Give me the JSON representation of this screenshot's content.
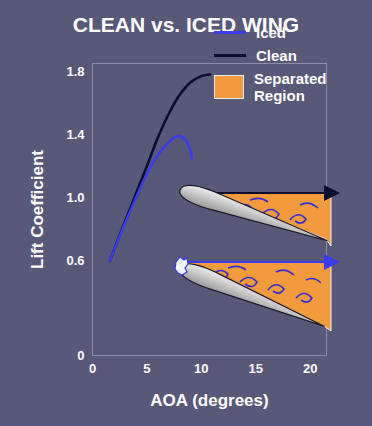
{
  "chart_data": {
    "type": "line",
    "title": "CLEAN vs. ICED WING",
    "x_label": "AOA (degrees)",
    "y_label": "Lift Coefficient",
    "xlim": [
      0,
      21.5
    ],
    "ylim": [
      0,
      1.85
    ],
    "xticks": [
      0,
      5,
      10,
      15,
      20
    ],
    "yticks": [
      0,
      0.6,
      {
        "value": 1,
        "label": "1.0"
      },
      1.4,
      1.8
    ],
    "legend": "top-right",
    "series": [
      {
        "name": "Iced",
        "color": "#3a3aee",
        "x": [
          1.6,
          3,
          5,
          6,
          7,
          7.5,
          8,
          8.5,
          9,
          9.1
        ],
        "values": [
          0.6,
          0.84,
          1.15,
          1.27,
          1.35,
          1.38,
          1.39,
          1.37,
          1.3,
          1.25
        ]
      },
      {
        "name": "Clean",
        "color": "#0c0c2e",
        "x": [
          1.6,
          3,
          5,
          6,
          7,
          8,
          9,
          10,
          10.8
        ],
        "values": [
          0.6,
          0.85,
          1.2,
          1.38,
          1.53,
          1.65,
          1.73,
          1.77,
          1.78
        ]
      }
    ],
    "annotations": [
      {
        "text": "Separated Region",
        "color": "#f39a3c"
      }
    ]
  }
}
